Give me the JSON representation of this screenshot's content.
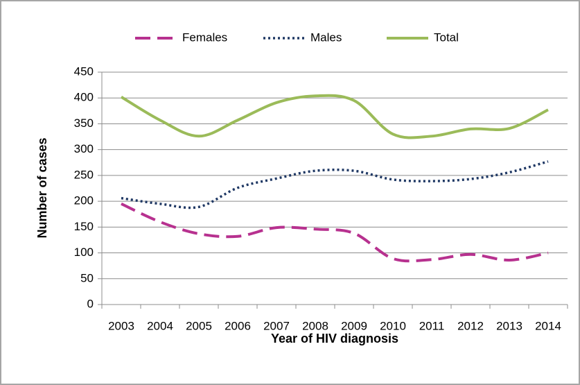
{
  "chart_data": {
    "type": "line",
    "xlabel": "Year of HIV diagnosis",
    "ylabel": "Number of cases",
    "categories": [
      "2003",
      "2004",
      "2005",
      "2006",
      "2007",
      "2008",
      "2009",
      "2010",
      "2011",
      "2012",
      "2013",
      "2014"
    ],
    "series": [
      {
        "name": "Females",
        "color": "#b7318f",
        "style": "dashed",
        "values": [
          195,
          160,
          137,
          132,
          149,
          146,
          138,
          89,
          87,
          97,
          86,
          100
        ]
      },
      {
        "name": "Males",
        "color": "#1f3864",
        "style": "dotted",
        "values": [
          206,
          195,
          189,
          226,
          244,
          259,
          259,
          242,
          239,
          243,
          256,
          277
        ]
      },
      {
        "name": "Total",
        "color": "#9bbb59",
        "style": "solid",
        "values": [
          402,
          357,
          326,
          357,
          391,
          404,
          395,
          330,
          326,
          340,
          341,
          377
        ]
      }
    ],
    "ylim": [
      0,
      450
    ],
    "yticks": [
      0,
      50,
      100,
      150,
      200,
      250,
      300,
      350,
      400,
      450
    ],
    "grid": true,
    "legend": "top"
  }
}
